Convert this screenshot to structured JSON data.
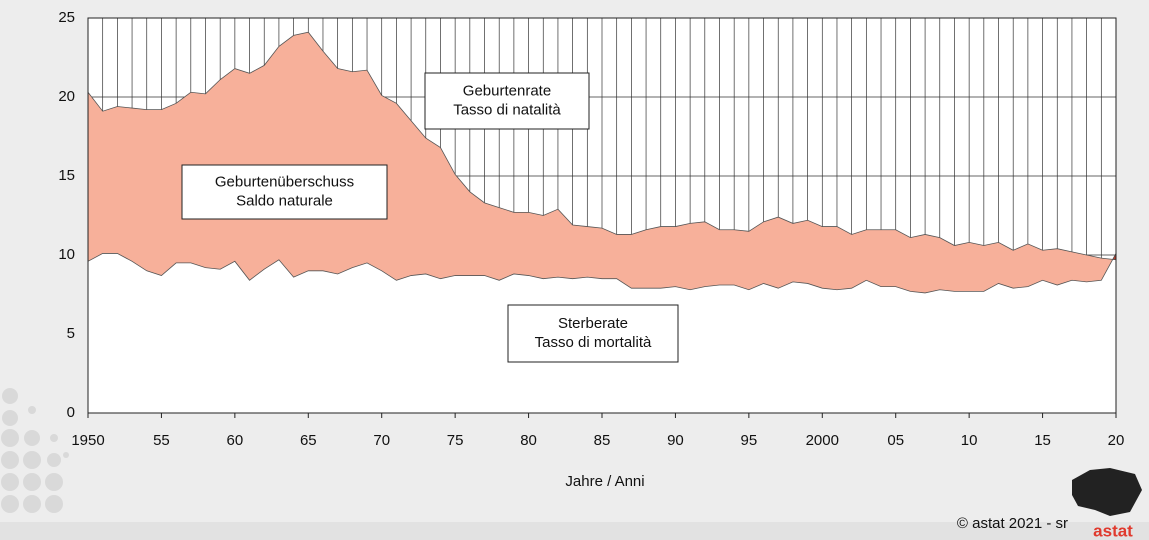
{
  "chart_data": {
    "type": "area",
    "x_label": "Jahre / Anni",
    "x": [
      1950,
      1951,
      1952,
      1953,
      1954,
      1955,
      1956,
      1957,
      1958,
      1959,
      1960,
      1961,
      1962,
      1963,
      1964,
      1965,
      1966,
      1967,
      1968,
      1969,
      1970,
      1971,
      1972,
      1973,
      1974,
      1975,
      1976,
      1977,
      1978,
      1979,
      1980,
      1981,
      1982,
      1983,
      1984,
      1985,
      1986,
      1987,
      1988,
      1989,
      1990,
      1991,
      1992,
      1993,
      1994,
      1995,
      1996,
      1997,
      1998,
      1999,
      2000,
      2001,
      2002,
      2003,
      2004,
      2005,
      2006,
      2007,
      2008,
      2009,
      2010,
      2011,
      2012,
      2013,
      2014,
      2015,
      2016,
      2017,
      2018,
      2019,
      2020
    ],
    "series": [
      {
        "name": "Geburtenrate",
        "color": "#f7b09a",
        "values": [
          20.3,
          19.1,
          19.4,
          19.3,
          19.2,
          19.2,
          19.6,
          20.3,
          20.2,
          21.1,
          21.8,
          21.5,
          22.0,
          23.2,
          23.9,
          24.1,
          22.9,
          21.8,
          21.6,
          21.7,
          20.1,
          19.6,
          18.5,
          17.4,
          16.8,
          15.1,
          14.0,
          13.3,
          13.0,
          12.7,
          12.7,
          12.5,
          12.9,
          11.9,
          11.8,
          11.7,
          11.3,
          11.3,
          11.6,
          11.8,
          11.8,
          12.0,
          12.1,
          11.6,
          11.6,
          11.5,
          12.1,
          12.4,
          12.0,
          12.2,
          11.8,
          11.8,
          11.3,
          11.6,
          11.6,
          11.6,
          11.1,
          11.3,
          11.1,
          10.6,
          10.8,
          10.6,
          10.8,
          10.3,
          10.7,
          10.3,
          10.4,
          10.2,
          10.0,
          9.8,
          9.7
        ]
      },
      {
        "name": "Sterberate",
        "color": "#ffffff",
        "values": [
          9.6,
          10.1,
          10.1,
          9.6,
          9.0,
          8.7,
          9.5,
          9.5,
          9.2,
          9.1,
          9.6,
          8.4,
          9.1,
          9.7,
          8.6,
          9.0,
          9.0,
          8.8,
          9.2,
          9.5,
          9.0,
          8.4,
          8.7,
          8.8,
          8.5,
          8.7,
          8.7,
          8.7,
          8.4,
          8.8,
          8.7,
          8.5,
          8.6,
          8.5,
          8.6,
          8.5,
          8.5,
          7.9,
          7.9,
          7.9,
          8.0,
          7.8,
          8.0,
          8.1,
          8.1,
          7.8,
          8.2,
          7.9,
          8.3,
          8.2,
          7.9,
          7.8,
          7.9,
          8.4,
          8.0,
          8.0,
          7.7,
          7.6,
          7.8,
          7.7,
          7.7,
          7.7,
          8.2,
          7.9,
          8.0,
          8.4,
          8.1,
          8.4,
          8.3,
          8.4,
          10.1
        ]
      }
    ],
    "negative_color": "#c0392b",
    "xlim": [
      1950,
      2020
    ],
    "xticks": [
      1950,
      {
        "value": 1955,
        "label": "55"
      },
      {
        "value": 1960,
        "label": "60"
      },
      {
        "value": 1965,
        "label": "65"
      },
      {
        "value": 1970,
        "label": "70"
      },
      {
        "value": 1975,
        "label": "75"
      },
      {
        "value": 1980,
        "label": "80"
      },
      {
        "value": 1985,
        "label": "85"
      },
      {
        "value": 1990,
        "label": "90"
      },
      {
        "value": 1995,
        "label": "95"
      },
      2000,
      {
        "value": 2005,
        "label": "05"
      },
      {
        "value": 2010,
        "label": "10"
      },
      {
        "value": 2015,
        "label": "15"
      },
      {
        "value": 2020,
        "label": "20"
      }
    ],
    "ylim": [
      0,
      25
    ],
    "yticks": [
      0,
      5,
      10,
      15,
      20,
      25
    ],
    "grid": true,
    "annotations": [
      {
        "lines": [
          "Geburtenrate",
          "Tasso di natalità"
        ]
      },
      {
        "lines": [
          "Geburtenüberschuss",
          "Saldo naturale"
        ]
      },
      {
        "lines": [
          "Sterberate",
          "Tasso di mortalità"
        ]
      }
    ],
    "credit": "© astat 2021 - sr",
    "logo": "astat"
  }
}
